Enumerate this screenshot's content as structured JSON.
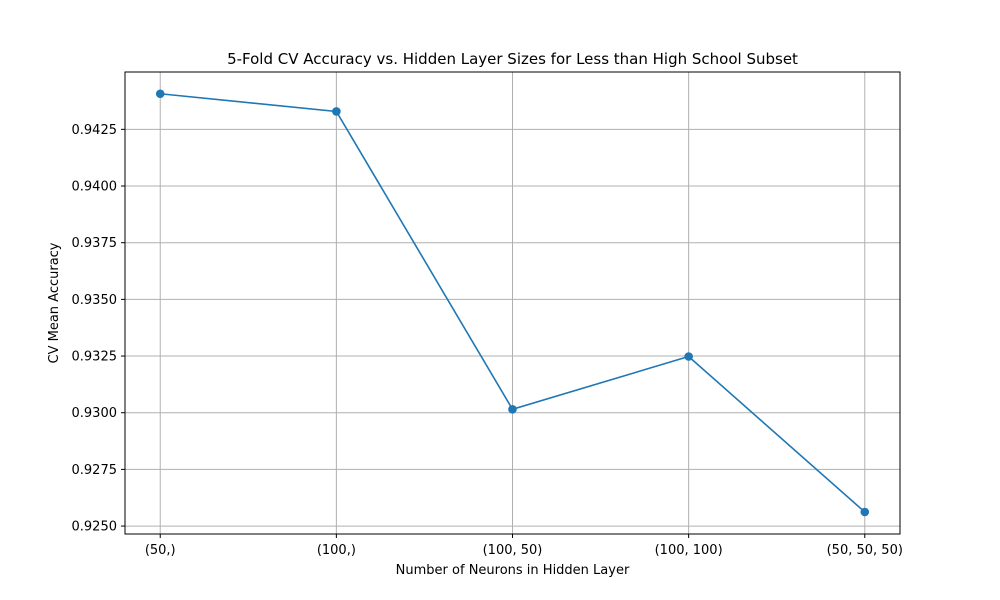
{
  "chart_data": {
    "type": "line",
    "title": "5-Fold CV Accuracy vs. Hidden Layer Sizes for Less than High School Subset",
    "xlabel": "Number of Neurons in Hidden Layer",
    "ylabel": "CV Mean Accuracy",
    "categories": [
      "(50,)",
      "(100,)",
      "(100, 50)",
      "(100, 100)",
      "(50, 50, 50)"
    ],
    "series": [
      {
        "values": [
          0.94407,
          0.94329,
          0.93015,
          0.93248,
          0.92562
        ]
      }
    ],
    "ylim": [
      0.92465,
      0.94503
    ],
    "yticks": [
      0.925,
      0.9275,
      0.93,
      0.9325,
      0.935,
      0.9375,
      0.94,
      0.9425
    ],
    "ytick_labels": [
      "0.9250",
      "0.9275",
      "0.9300",
      "0.9325",
      "0.9350",
      "0.9375",
      "0.9400",
      "0.9425"
    ],
    "grid": true,
    "line_color": "#1f77b4",
    "marker": "circle"
  }
}
